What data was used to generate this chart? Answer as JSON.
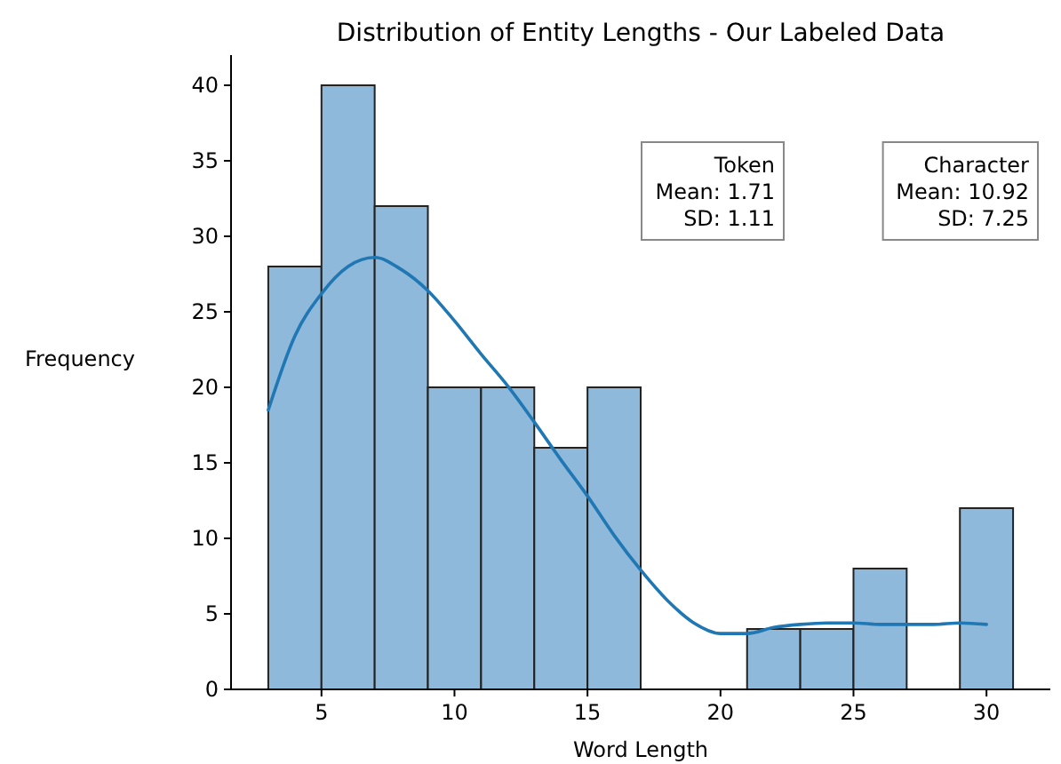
{
  "chart_data": {
    "type": "histogram",
    "title": "Distribution of Entity Lengths - Our Labeled Data",
    "xlabel": "Word Length",
    "ylabel": "Frequency",
    "bins": [
      3,
      5,
      7,
      9,
      11,
      13,
      15,
      17,
      19,
      21,
      23,
      25,
      27,
      29,
      31
    ],
    "values": [
      28,
      40,
      32,
      20,
      20,
      16,
      20,
      0,
      0,
      4,
      4,
      8,
      0,
      12
    ],
    "color": "#8fb9da",
    "series": [
      {
        "type": "line",
        "color": "#1f77b4",
        "x": [
          3,
          4,
          5,
          6,
          7,
          8,
          9,
          10,
          11,
          12,
          13,
          14,
          15,
          16,
          17,
          18,
          19,
          20,
          21,
          22,
          23,
          24,
          25,
          26,
          27,
          28,
          29,
          30
        ],
        "values": [
          18.5,
          23.4,
          26.2,
          28,
          28.6,
          27.8,
          26.4,
          24.4,
          22.2,
          20.1,
          17.7,
          15.2,
          12.8,
          10.2,
          7.9,
          5.9,
          4.4,
          3.7,
          3.7,
          4.1,
          4.3,
          4.4,
          4.4,
          4.3,
          4.3,
          4.3,
          4.4,
          4.3
        ]
      }
    ],
    "xlim": [
      1.6,
      32.4
    ],
    "ylim": [
      0,
      42
    ],
    "xticks": [
      5,
      10,
      15,
      20,
      25,
      30
    ],
    "yticks": [
      0,
      5,
      10,
      15,
      20,
      25,
      30,
      35,
      40
    ],
    "grid": false,
    "annotations": [
      "Token\nMean: 1.71\nSD: 1.11",
      "Character\nMean: 10.92\nSD: 7.25"
    ]
  }
}
